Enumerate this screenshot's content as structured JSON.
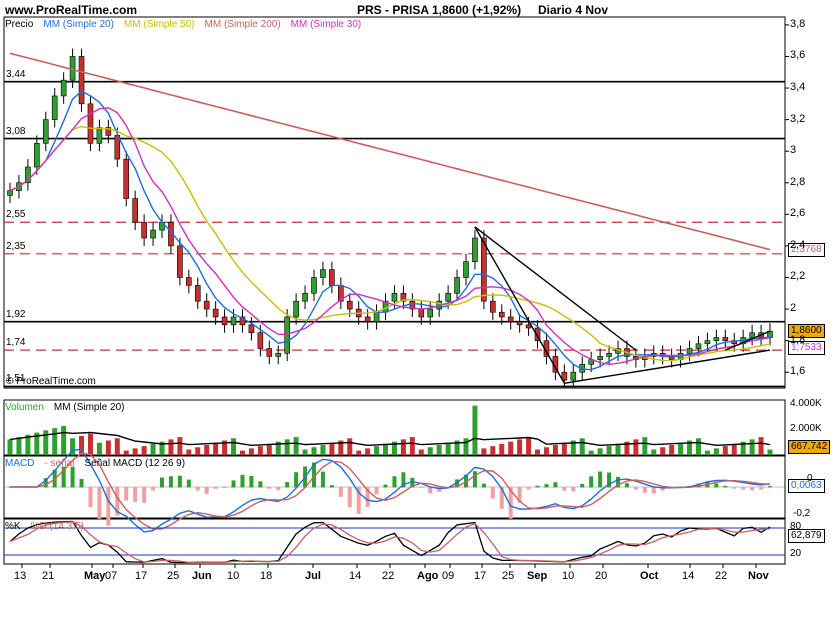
{
  "header": {
    "url": "www.ProRealTime.com",
    "symbol": "PRS - PRISA",
    "price_change": "1,8600 (+1,92%)",
    "period": "Diario 4 Nov"
  },
  "legends": {
    "price": [
      {
        "text": "Precio",
        "color": "#000000"
      },
      {
        "text": "MM (Simple 20)",
        "color": "#1e6fd9"
      },
      {
        "text": "MM (Simple 50)",
        "color": "#c8c000"
      },
      {
        "text": "MM (Simple 200)",
        "color": "#c96060"
      },
      {
        "text": "MM (Simple 30)",
        "color": "#d030c0"
      }
    ],
    "volume": [
      {
        "text": "Volumen",
        "color": "#2ea02e"
      },
      {
        "text": "MM (Simple 20)",
        "color": "#000000"
      }
    ],
    "macd": [
      {
        "text": "MACD",
        "color": "#1e6fd9"
      },
      {
        "text": "- señal",
        "color": "#c96060"
      },
      {
        "text": "Señal MACD (12 26 9)",
        "color": "#000000"
      }
    ],
    "stoch": [
      {
        "text": "%K",
        "color": "#000000"
      },
      {
        "text": "%D (14 3 5)",
        "color": "#c96060"
      }
    ]
  },
  "watermark": "© ProRealTime.com",
  "level_labels": [
    "3,44",
    "3,08",
    "2,55",
    "2,35",
    "1,92",
    "1,74",
    "1,51"
  ],
  "price_tags": [
    {
      "text": "2,3768",
      "color": "#c96060"
    },
    {
      "text": "1,8600",
      "color": "#000000"
    },
    {
      "text": "1,7533",
      "color": "#d030c0"
    },
    {
      "text": "667.742",
      "color": "#000000"
    },
    {
      "text": "0,0063",
      "color": "#1e6fd9"
    },
    {
      "text": "62,879",
      "color": "#000000"
    }
  ],
  "y_axis_price": [
    "3,8",
    "3,6",
    "3,4",
    "3,2",
    "3",
    "2,8",
    "2,6",
    "2,4",
    "2,2",
    "2",
    "1,8",
    "1,6"
  ],
  "y_axis_volume": [
    "4.000K",
    "2.000K"
  ],
  "y_axis_macd": [
    "0",
    "-0,2"
  ],
  "y_axis_stoch": [
    "80",
    "20"
  ],
  "x_axis_labels": [
    "13",
    "21",
    "May",
    "07",
    "17",
    "25",
    "Jun",
    "10",
    "18",
    "Jul",
    "14",
    "22",
    "Ago",
    "09",
    "17",
    "25",
    "Sep",
    "10",
    "20",
    "Oct",
    "14",
    "22",
    "Nov"
  ],
  "colors": {
    "up": "#2ea02e",
    "down": "#c83030",
    "ma20": "#1e6fd9",
    "ma50": "#c8c000",
    "ma200": "#c96060",
    "ma30": "#d030c0",
    "hist": "#2ea02e"
  },
  "chart_data": {
    "type": "candlestick",
    "title": "PRS - PRISA",
    "period": "Diario",
    "last_close": 1.86,
    "change_pct": 1.92,
    "price_axis_range": [
      1.5,
      3.85
    ],
    "support_resistance": [
      3.44,
      3.08,
      2.55,
      2.35,
      1.92,
      1.74,
      1.51
    ],
    "close_series": [
      2.75,
      2.8,
      2.9,
      3.05,
      3.2,
      3.35,
      3.45,
      3.6,
      3.3,
      3.05,
      3.15,
      3.1,
      2.95,
      2.7,
      2.55,
      2.45,
      2.5,
      2.55,
      2.4,
      2.2,
      2.15,
      2.05,
      2.0,
      1.95,
      1.9,
      1.95,
      1.9,
      1.85,
      1.75,
      1.7,
      1.72,
      1.95,
      2.05,
      2.1,
      2.2,
      2.25,
      2.15,
      2.05,
      2.0,
      1.95,
      1.92,
      1.98,
      2.05,
      2.1,
      2.05,
      2.0,
      1.95,
      2.0,
      2.05,
      2.1,
      2.2,
      2.3,
      2.45,
      2.05,
      1.98,
      1.95,
      1.92,
      1.9,
      1.88,
      1.8,
      1.7,
      1.6,
      1.55,
      1.6,
      1.65,
      1.68,
      1.7,
      1.72,
      1.75,
      1.7,
      1.68,
      1.7,
      1.72,
      1.7,
      1.68,
      1.72,
      1.75,
      1.78,
      1.8,
      1.82,
      1.8,
      1.78,
      1.82,
      1.85,
      1.82,
      1.86
    ],
    "ma": [
      {
        "name": "MM (Simple 20)",
        "last": 1.79
      },
      {
        "name": "MM (Simple 50)",
        "last": 1.77
      },
      {
        "name": "MM (Simple 200)",
        "last": 2.3768
      },
      {
        "name": "MM (Simple 30)",
        "last": 1.7533
      }
    ],
    "volume": {
      "ma20_last": 667742,
      "axis_ticks": [
        2000000,
        4000000
      ]
    },
    "macd": {
      "params": "12 26 9",
      "last": 0.0063,
      "axis_ticks": [
        0,
        -0.2
      ]
    },
    "stochastic": {
      "params": "14 3 5",
      "k_last": 62.879,
      "levels": [
        20,
        80
      ]
    }
  }
}
